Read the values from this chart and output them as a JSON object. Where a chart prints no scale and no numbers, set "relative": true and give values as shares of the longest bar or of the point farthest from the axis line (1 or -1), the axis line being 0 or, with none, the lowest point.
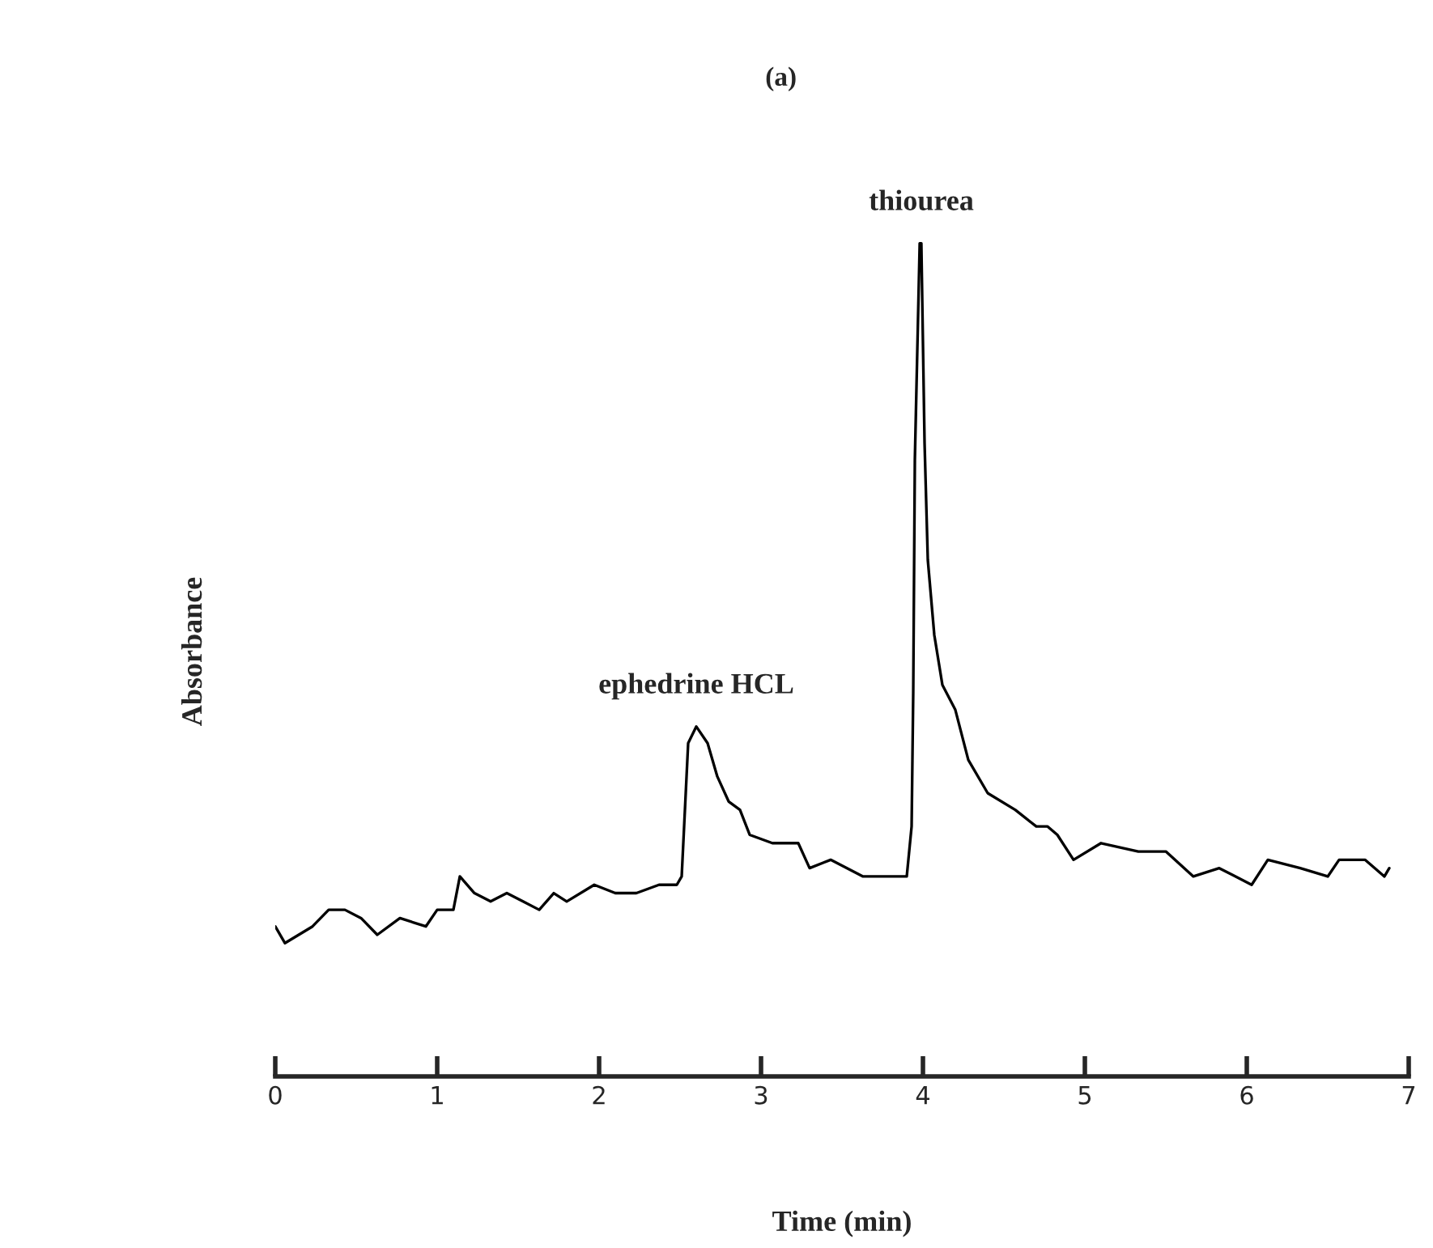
{
  "chart_data": {
    "type": "line",
    "title": "(a)",
    "xlabel": "Time (min)",
    "ylabel": "Absorbance",
    "relative": true,
    "xlim": [
      0,
      7
    ],
    "xticks": [
      0,
      1,
      2,
      3,
      4,
      5,
      6,
      7
    ],
    "grid": false,
    "legend": false,
    "marker": "none",
    "line_style": "solid",
    "annotations": [
      {
        "text": "ephedrine HCL",
        "x": 2.6,
        "y": 0.42
      },
      {
        "text": "thiourea",
        "x": 3.99,
        "y": 1.0
      }
    ],
    "series": [
      {
        "color": "#000000",
        "x": [
          0.0,
          0.06,
          0.23,
          0.33,
          0.43,
          0.53,
          0.63,
          0.77,
          0.93,
          1.0,
          1.1,
          1.14,
          1.23,
          1.33,
          1.43,
          1.53,
          1.63,
          1.72,
          1.8,
          1.97,
          2.1,
          2.23,
          2.37,
          2.48,
          2.51,
          2.53,
          2.55,
          2.6,
          2.67,
          2.73,
          2.8,
          2.87,
          2.93,
          3.07,
          3.23,
          3.3,
          3.43,
          3.63,
          3.8,
          3.9,
          3.93,
          3.94,
          3.95,
          3.98,
          3.99,
          4.01,
          4.03,
          4.07,
          4.12,
          4.2,
          4.28,
          4.4,
          4.57,
          4.7,
          4.77,
          4.83,
          4.93,
          5.1,
          5.33,
          5.5,
          5.67,
          5.83,
          6.03,
          6.13,
          6.33,
          6.5,
          6.57,
          6.73,
          6.85,
          6.88
        ],
        "values": [
          0.18,
          0.16,
          0.18,
          0.2,
          0.2,
          0.19,
          0.17,
          0.19,
          0.18,
          0.2,
          0.2,
          0.24,
          0.22,
          0.21,
          0.22,
          0.21,
          0.2,
          0.22,
          0.21,
          0.23,
          0.22,
          0.22,
          0.23,
          0.23,
          0.24,
          0.32,
          0.4,
          0.42,
          0.4,
          0.36,
          0.33,
          0.32,
          0.29,
          0.28,
          0.28,
          0.25,
          0.26,
          0.24,
          0.24,
          0.24,
          0.3,
          0.46,
          0.74,
          1.0,
          1.0,
          0.76,
          0.62,
          0.53,
          0.47,
          0.44,
          0.38,
          0.34,
          0.32,
          0.3,
          0.3,
          0.29,
          0.26,
          0.28,
          0.27,
          0.27,
          0.24,
          0.25,
          0.23,
          0.26,
          0.25,
          0.24,
          0.26,
          0.26,
          0.24,
          0.25
        ]
      }
    ]
  }
}
